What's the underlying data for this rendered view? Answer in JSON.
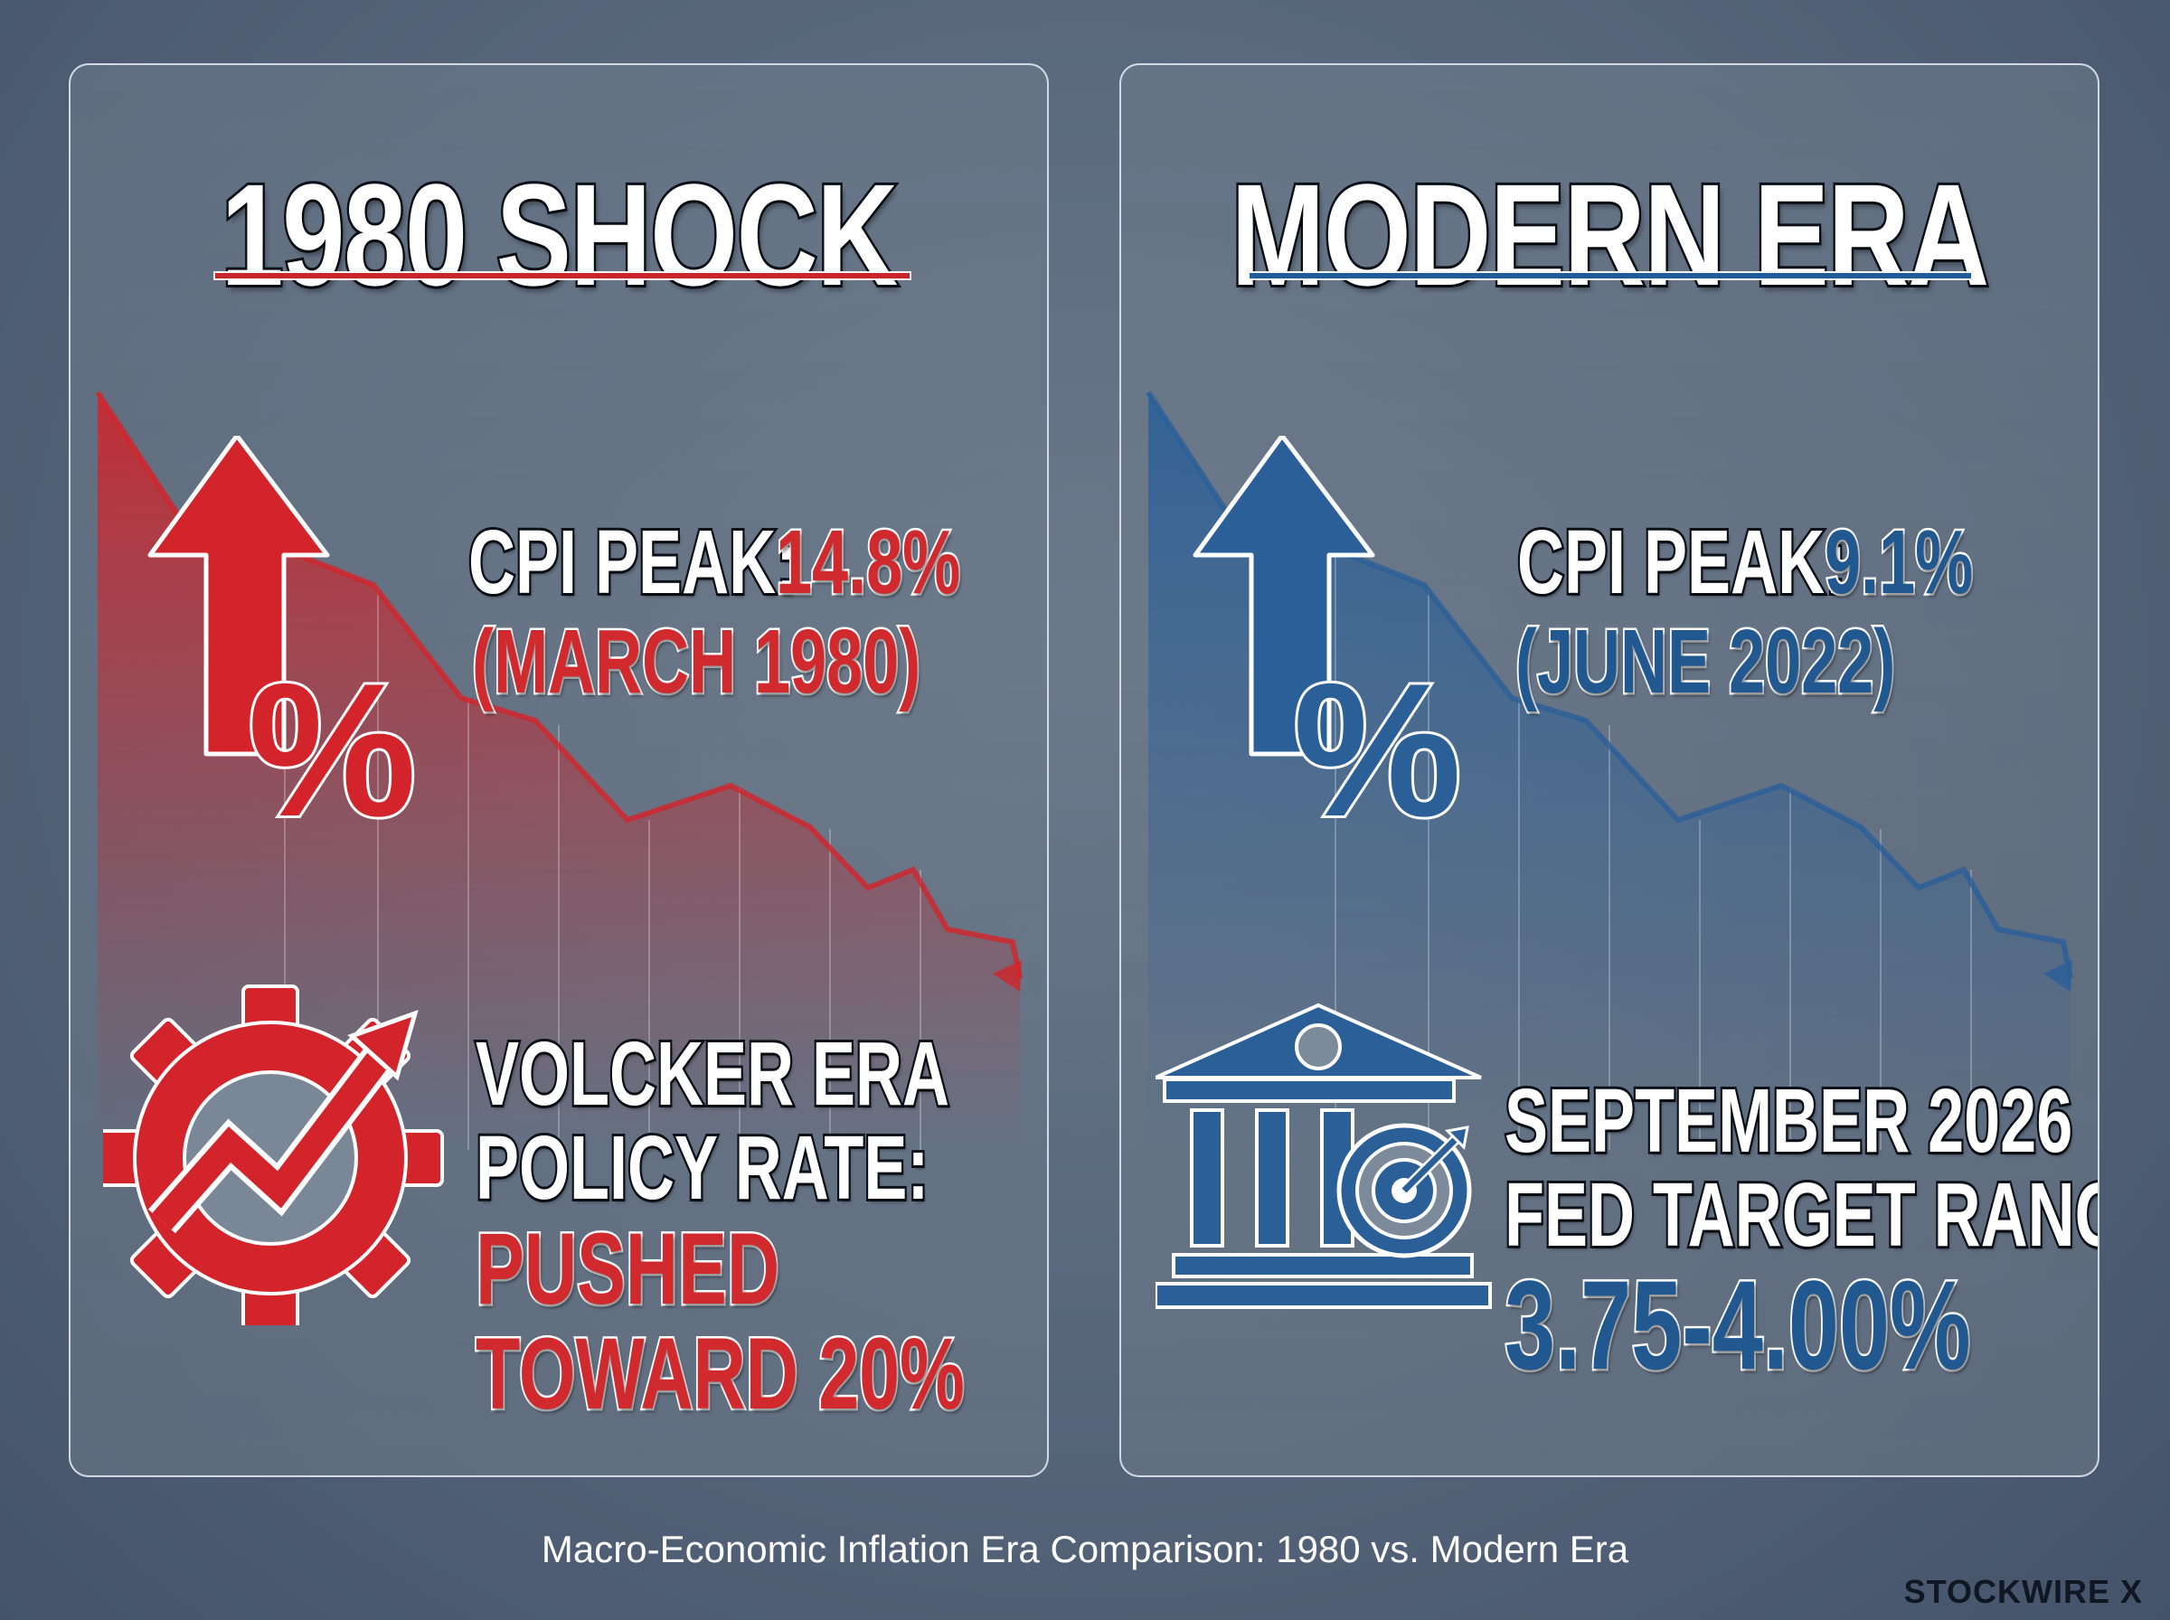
{
  "left": {
    "title": "1980 SHOCK",
    "cpi_label": "CPI PEAK: ",
    "cpi_value": "14.8%",
    "cpi_date": "(MARCH 1980)",
    "policy_line1": "VOLCKER ERA",
    "policy_line2": "POLICY RATE:",
    "policy_value_line1": "PUSHED",
    "policy_value_line2": "TOWARD 20%",
    "icons": [
      "percent-up-arrow-icon",
      "gear-trend-icon"
    ],
    "accent": "#c9262c"
  },
  "right": {
    "title": "MODERN ERA",
    "cpi_label": "CPI PEAK: ",
    "cpi_value": "9.1%",
    "cpi_date": "(JUNE 2022)",
    "policy_line1": "SEPTEMBER 2026",
    "policy_line2": "FED TARGET RANGE:",
    "policy_value": "3.75-4.00%",
    "icons": [
      "percent-up-arrow-icon",
      "bank-target-icon"
    ],
    "accent": "#1f5b98"
  },
  "caption": "Macro-Economic Inflation Era Comparison: 1980 vs. Modern Era",
  "brand": "STOCKWIRE X"
}
